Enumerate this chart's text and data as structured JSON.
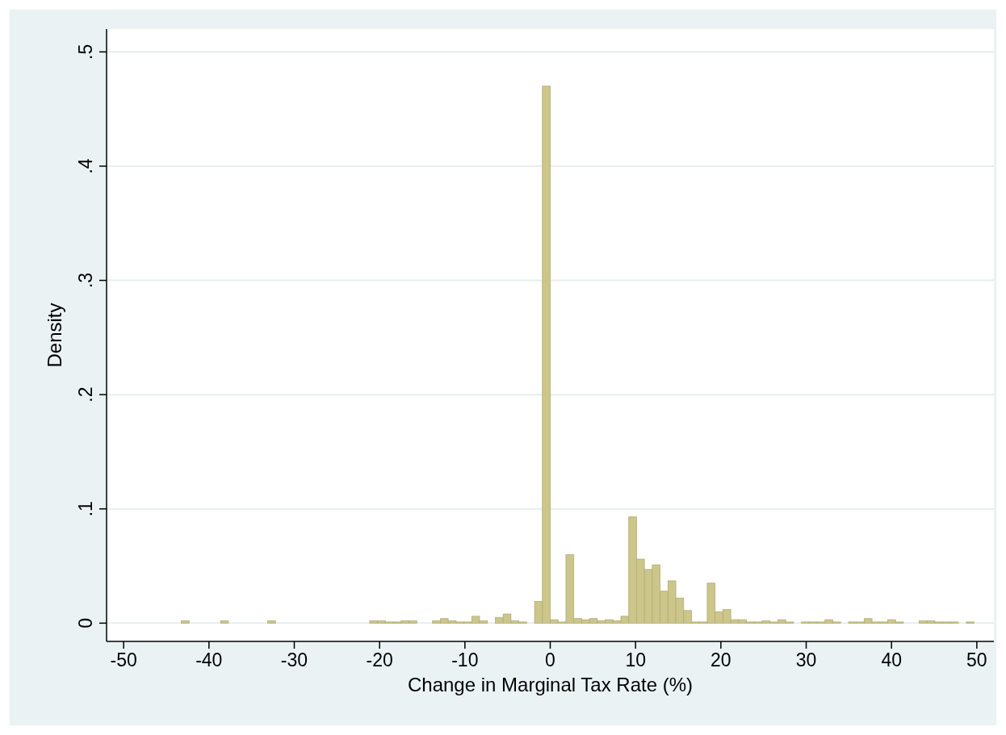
{
  "chart_data": {
    "type": "histogram",
    "xlabel": "Change in Marginal Tax Rate (%)",
    "ylabel": "Density",
    "color": "#cdc68a",
    "bins": [
      -43.24,
      -42.32,
      -41.4,
      -40.48,
      -39.56,
      -38.64,
      -37.72,
      -36.8,
      -35.88,
      -34.96,
      -34.04,
      -33.12,
      -32.2,
      -31.28,
      -30.36,
      -29.44,
      -28.52,
      -27.6,
      -26.68,
      -25.76,
      -24.84,
      -23.92,
      -23,
      -22.08,
      -21.16,
      -20.24,
      -19.32,
      -18.4,
      -17.48,
      -16.56,
      -15.64,
      -14.72,
      -13.8,
      -12.88,
      -11.96,
      -11.04,
      -10.12,
      -9.2,
      -8.28,
      -7.36,
      -6.44,
      -5.52,
      -4.6,
      -3.68,
      -2.76,
      -1.84,
      -0.92,
      0,
      0.92,
      1.84,
      2.76,
      3.68,
      4.6,
      5.52,
      6.44,
      7.36,
      8.28,
      9.2,
      10.12,
      11.04,
      11.96,
      12.88,
      13.8,
      14.72,
      15.64,
      16.56,
      17.48,
      18.4,
      19.32,
      20.24,
      21.16,
      22.08,
      23,
      23.92,
      24.84,
      25.76,
      26.68,
      27.6,
      28.52,
      29.44,
      30.36,
      31.28,
      32.2,
      33.12,
      34.04,
      34.96,
      35.88,
      36.8,
      37.72,
      38.64,
      39.56,
      40.48,
      41.4,
      42.32,
      43.24,
      44.16,
      45.08,
      46,
      46.92,
      47.84,
      48.76,
      49.68
    ],
    "values": [
      0.002,
      0,
      0,
      0,
      0,
      0.002,
      0,
      0,
      0,
      0,
      0,
      0.002,
      0,
      0,
      0,
      0,
      0,
      0,
      0,
      0,
      0,
      0,
      0,
      0,
      0.002,
      0.002,
      0.001,
      0.001,
      0.002,
      0.002,
      0,
      0,
      0.002,
      0.004,
      0.002,
      0.001,
      0.001,
      0.006,
      0.002,
      0,
      0.005,
      0.008,
      0.002,
      0.001,
      0,
      0.019,
      0.47,
      0.003,
      0.001,
      0.06,
      0.004,
      0.003,
      0.004,
      0.002,
      0.003,
      0.002,
      0.006,
      0.093,
      0.056,
      0.047,
      0.051,
      0.028,
      0.037,
      0.022,
      0.011,
      0.001,
      0.001,
      0.035,
      0.01,
      0.012,
      0.003,
      0.003,
      0.001,
      0.001,
      0.002,
      0.001,
      0.003,
      0.001,
      0,
      0.001,
      0.001,
      0.001,
      0.003,
      0.001,
      0,
      0.001,
      0.001,
      0.004,
      0.001,
      0.001,
      0.003,
      0.001,
      0,
      0,
      0.002,
      0.002,
      0.001,
      0.001,
      0.001,
      0,
      0.001
    ],
    "xlim": [
      -52,
      52
    ],
    "ylim": [
      -0.016,
      0.52
    ],
    "xticks": [
      -50,
      -40,
      -30,
      -20,
      -10,
      0,
      10,
      20,
      30,
      40,
      50
    ],
    "yticks": [
      {
        "value": 0,
        "label": "0"
      },
      {
        "value": 0.1,
        "label": ".1"
      },
      {
        "value": 0.2,
        "label": ".2"
      },
      {
        "value": 0.3,
        "label": ".3"
      },
      {
        "value": 0.4,
        "label": ".4"
      },
      {
        "value": 0.5,
        "label": ".5"
      }
    ],
    "grid": "y"
  }
}
